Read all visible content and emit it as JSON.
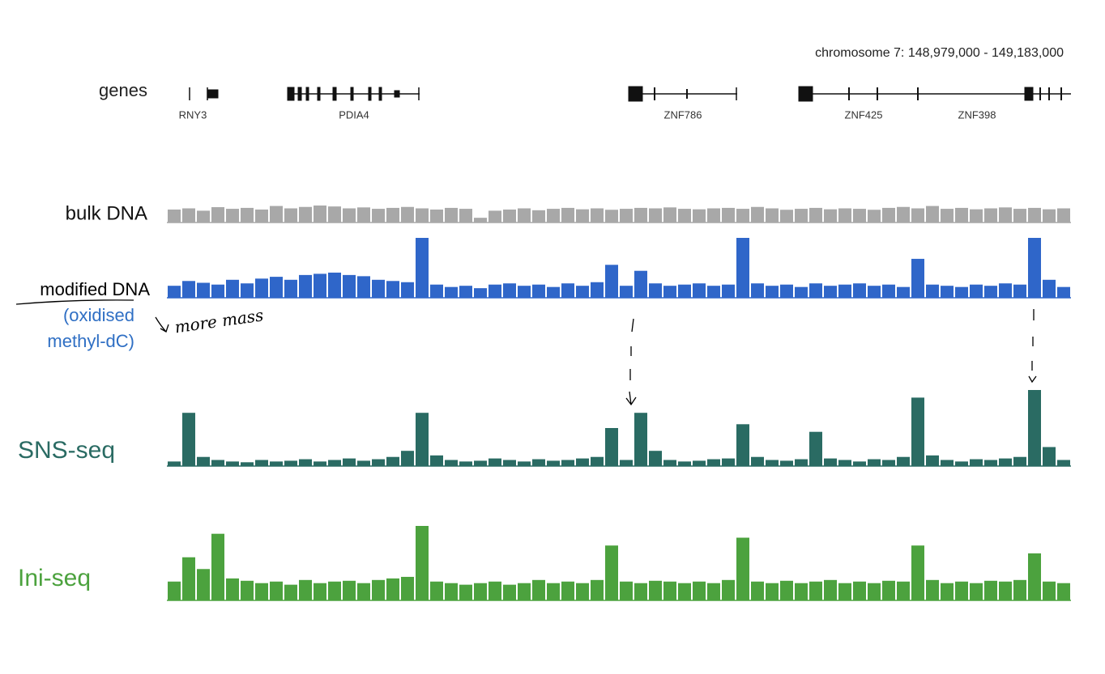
{
  "region": "chromosome 7: 148,979,000 - 149,183,000",
  "genes_label": "genes",
  "genes": [
    "RNY3",
    "PDIA4",
    "ZNF786",
    "ZNF425",
    "ZNF398"
  ],
  "tracks": [
    {
      "name": "bulk DNA",
      "color": "#a8a8a8",
      "values": [
        55,
        60,
        50,
        65,
        58,
        62,
        55,
        70,
        60,
        66,
        72,
        68,
        60,
        64,
        58,
        62,
        66,
        60,
        55,
        62,
        58,
        20,
        50,
        55,
        60,
        52,
        58,
        62,
        56,
        60,
        54,
        58,
        62,
        60,
        64,
        58,
        56,
        60,
        62,
        58,
        66,
        60,
        54,
        58,
        62,
        56,
        60,
        58,
        54,
        62,
        66,
        60,
        70,
        58,
        62,
        56,
        60,
        64,
        58,
        62,
        56,
        60
      ]
    },
    {
      "name": "modified DNA",
      "subtitle": [
        "(oxidised",
        "methyl-dC)"
      ],
      "color": "#2f66c9",
      "values": [
        20,
        28,
        25,
        22,
        30,
        24,
        32,
        35,
        30,
        38,
        40,
        42,
        38,
        36,
        30,
        28,
        26,
        100,
        22,
        18,
        20,
        16,
        22,
        24,
        20,
        22,
        18,
        24,
        20,
        26,
        55,
        20,
        45,
        24,
        20,
        22,
        24,
        20,
        22,
        100,
        24,
        20,
        22,
        18,
        24,
        20,
        22,
        24,
        20,
        22,
        18,
        65,
        22,
        20,
        18,
        22,
        20,
        24,
        22,
        100,
        30,
        18
      ]
    },
    {
      "name": "SNS-seq",
      "color": "#2a6b63",
      "values": [
        6,
        70,
        12,
        8,
        6,
        5,
        8,
        6,
        7,
        9,
        6,
        8,
        10,
        7,
        9,
        12,
        20,
        70,
        14,
        8,
        6,
        7,
        10,
        8,
        6,
        9,
        7,
        8,
        10,
        12,
        50,
        8,
        70,
        20,
        8,
        6,
        7,
        9,
        10,
        55,
        12,
        8,
        7,
        9,
        45,
        10,
        8,
        6,
        9,
        8,
        12,
        90,
        14,
        8,
        6,
        9,
        8,
        10,
        12,
        100,
        25,
        8
      ]
    },
    {
      "name": "Ini-seq",
      "color": "#4ca23e",
      "values": [
        24,
        55,
        40,
        85,
        28,
        25,
        22,
        24,
        20,
        26,
        22,
        24,
        25,
        22,
        26,
        28,
        30,
        95,
        24,
        22,
        20,
        22,
        24,
        20,
        22,
        26,
        22,
        24,
        22,
        26,
        70,
        24,
        22,
        25,
        24,
        22,
        24,
        22,
        26,
        80,
        24,
        22,
        25,
        22,
        24,
        26,
        22,
        24,
        22,
        25,
        24,
        70,
        26,
        22,
        24,
        22,
        25,
        24,
        26,
        60,
        24,
        22
      ]
    }
  ],
  "annotation": "more mass"
}
